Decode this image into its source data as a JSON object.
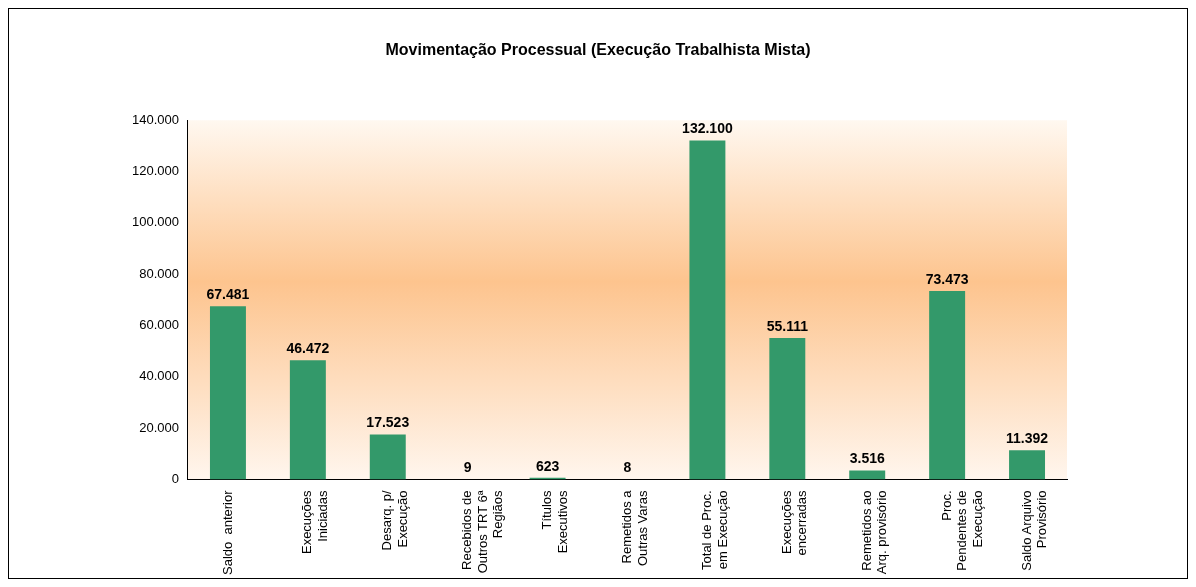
{
  "chart_data": {
    "type": "bar",
    "title": "Movimentação Processual (Execução Trabalhista Mista)",
    "categories": [
      "Saldo  anterior",
      "Execuções\nIniciadas",
      "Desarq. p/\nExecução",
      "Recebidos de\nOutros TRT 6ª\nRegiãos",
      "Títulos\nExecutivos",
      "Remetidos a\nOutras Varas",
      "Total de Proc.\nem Execução",
      "Execuções\nencerradas",
      "Remetidos ao\nArq. provisório",
      "Proc.\nPendentes de\nExecução",
      "Saldo Arquivo\nProvisório"
    ],
    "values": [
      67481,
      46472,
      17523,
      9,
      623,
      8,
      132100,
      55111,
      3516,
      73473,
      11392
    ],
    "value_labels": [
      "67.481",
      "46.472",
      "17.523",
      "9",
      "623",
      "8",
      "132.100",
      "55.111",
      "3.516",
      "73.473",
      "11.392"
    ],
    "color": "#33996a",
    "ylim": [
      0,
      140000
    ],
    "yticks": [
      {
        "value": 0,
        "label": "0"
      },
      {
        "value": 20000,
        "label": "20.000"
      },
      {
        "value": 40000,
        "label": "40.000"
      },
      {
        "value": 60000,
        "label": "60.000"
      },
      {
        "value": 80000,
        "label": "80.000"
      },
      {
        "value": 100000,
        "label": "100.000"
      },
      {
        "value": 120000,
        "label": "120.000"
      },
      {
        "value": 140000,
        "label": "140.000"
      }
    ],
    "grid": false,
    "legend": false
  }
}
